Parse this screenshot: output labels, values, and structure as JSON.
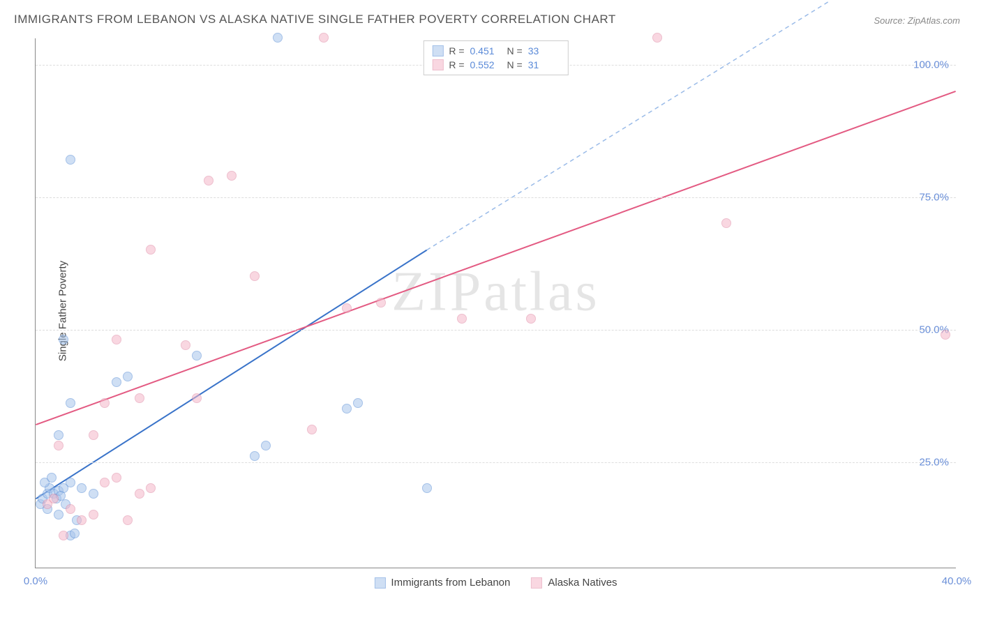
{
  "title": "IMMIGRANTS FROM LEBANON VS ALASKA NATIVE SINGLE FATHER POVERTY CORRELATION CHART",
  "source_prefix": "Source: ",
  "source_name": "ZipAtlas.com",
  "watermark": "ZIPatlas",
  "chart": {
    "type": "scatter",
    "ylabel": "Single Father Poverty",
    "xlim": [
      0,
      40
    ],
    "ylim": [
      5,
      105
    ],
    "xtick_labels": [
      "0.0%",
      "40.0%"
    ],
    "xtick_positions": [
      0,
      40
    ],
    "ytick_labels": [
      "25.0%",
      "50.0%",
      "75.0%",
      "100.0%"
    ],
    "ytick_positions": [
      25,
      50,
      75,
      100
    ],
    "background_color": "#ffffff",
    "grid_color": "#dddddd",
    "axis_color": "#888888",
    "tick_label_color": "#6a8fd8",
    "marker_radius": 7,
    "series": [
      {
        "name": "Immigrants from Lebanon",
        "fill_color": "#a8c5ec",
        "stroke_color": "#5b8fd6",
        "fill_opacity": 0.55,
        "trend_color": "#3973c9",
        "trend_dash_color": "#9abbe8",
        "r_value": "0.451",
        "n_value": "33",
        "trend": {
          "x1": 0,
          "y1": 18,
          "x2": 17,
          "y2": 65,
          "ext_x2": 34.5,
          "ext_y2": 112
        },
        "points": [
          [
            0.2,
            17
          ],
          [
            0.3,
            18
          ],
          [
            0.5,
            19
          ],
          [
            0.6,
            20
          ],
          [
            0.4,
            21
          ],
          [
            0.8,
            19
          ],
          [
            0.9,
            18
          ],
          [
            1.0,
            19.5
          ],
          [
            1.2,
            20
          ],
          [
            1.1,
            18.5
          ],
          [
            1.5,
            21
          ],
          [
            1.3,
            17
          ],
          [
            1.5,
            11
          ],
          [
            1.7,
            11.5
          ],
          [
            2.0,
            20
          ],
          [
            2.5,
            19
          ],
          [
            0.5,
            16
          ],
          [
            1.0,
            15
          ],
          [
            1.8,
            14
          ],
          [
            1.0,
            30
          ],
          [
            1.5,
            36
          ],
          [
            1.2,
            48
          ],
          [
            1.5,
            82
          ],
          [
            3.5,
            40
          ],
          [
            4.0,
            41
          ],
          [
            7.0,
            45
          ],
          [
            9.5,
            26
          ],
          [
            10.0,
            28
          ],
          [
            10.5,
            105
          ],
          [
            13.5,
            35
          ],
          [
            14.0,
            36
          ],
          [
            17.0,
            20
          ],
          [
            0.7,
            22
          ]
        ]
      },
      {
        "name": "Alaska Natives",
        "fill_color": "#f5b8c9",
        "stroke_color": "#e08aa5",
        "fill_opacity": 0.55,
        "trend_color": "#e35a82",
        "r_value": "0.552",
        "n_value": "31",
        "trend": {
          "x1": 0,
          "y1": 32,
          "x2": 40,
          "y2": 95
        },
        "points": [
          [
            0.5,
            17
          ],
          [
            0.8,
            18
          ],
          [
            1.0,
            28
          ],
          [
            1.2,
            11
          ],
          [
            1.5,
            16
          ],
          [
            2.0,
            14
          ],
          [
            2.5,
            15
          ],
          [
            3.0,
            21
          ],
          [
            3.5,
            22
          ],
          [
            4.0,
            14
          ],
          [
            4.5,
            19
          ],
          [
            5.0,
            20
          ],
          [
            2.5,
            30
          ],
          [
            3.0,
            36
          ],
          [
            3.5,
            48
          ],
          [
            4.5,
            37
          ],
          [
            5.0,
            65
          ],
          [
            6.5,
            47
          ],
          [
            7.0,
            37
          ],
          [
            7.5,
            78
          ],
          [
            8.5,
            79
          ],
          [
            9.5,
            60
          ],
          [
            12.0,
            31
          ],
          [
            12.5,
            105
          ],
          [
            13.5,
            54
          ],
          [
            15.0,
            55
          ],
          [
            18.5,
            52
          ],
          [
            21.5,
            52
          ],
          [
            27.0,
            105
          ],
          [
            30.0,
            70
          ],
          [
            39.5,
            49
          ]
        ]
      }
    ]
  },
  "top_legend": {
    "r_label": "R =",
    "n_label": "N ="
  }
}
